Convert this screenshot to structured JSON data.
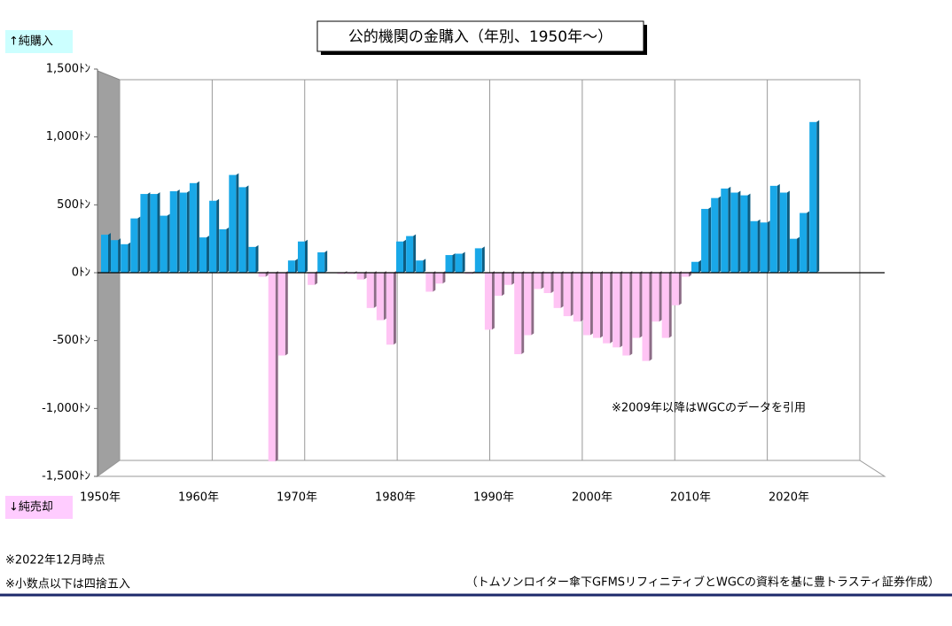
{
  "chart_data": {
    "type": "bar",
    "title": "公的機関の金購入（年別、1950年～）",
    "y_label_top": "↑純購入",
    "y_label_bottom": "↓純売却",
    "annotation": "※2009年以降はWGCのデータを引用",
    "notes": [
      "※2022年12月時点",
      "※小数点以下は四捨五入"
    ],
    "source": "（トムソンロイター傘下GFMSリフィニティブとWGCの資料を基に豊トラスティ証券作成）",
    "x": [
      1950,
      1951,
      1952,
      1953,
      1954,
      1955,
      1956,
      1957,
      1958,
      1959,
      1960,
      1961,
      1962,
      1963,
      1964,
      1965,
      1966,
      1967,
      1968,
      1969,
      1970,
      1971,
      1972,
      1973,
      1974,
      1975,
      1976,
      1977,
      1978,
      1979,
      1980,
      1981,
      1982,
      1983,
      1984,
      1985,
      1986,
      1987,
      1988,
      1989,
      1990,
      1991,
      1992,
      1993,
      1994,
      1995,
      1996,
      1997,
      1998,
      1999,
      2000,
      2001,
      2002,
      2003,
      2004,
      2005,
      2006,
      2007,
      2008,
      2009,
      2010,
      2011,
      2012,
      2013,
      2014,
      2015,
      2016,
      2017,
      2018,
      2019,
      2020,
      2021,
      2022
    ],
    "values": [
      280,
      240,
      210,
      400,
      580,
      580,
      420,
      600,
      590,
      660,
      260,
      530,
      320,
      720,
      630,
      190,
      -30,
      -1390,
      -610,
      90,
      230,
      -90,
      150,
      0,
      -10,
      -10,
      -50,
      -260,
      -350,
      -530,
      230,
      270,
      90,
      -140,
      -80,
      130,
      140,
      -10,
      180,
      -420,
      -170,
      -90,
      -600,
      -460,
      -120,
      -150,
      -260,
      -320,
      -360,
      -460,
      -480,
      -520,
      -550,
      -610,
      -480,
      -650,
      -360,
      -480,
      -240,
      -30,
      80,
      470,
      550,
      620,
      590,
      570,
      380,
      370,
      640,
      590,
      250,
      440,
      1110
    ],
    "color": "#19a8e8",
    "negative_color": "#ffc4f4",
    "xlim": [
      1950,
      2030
    ],
    "xticks": [
      {
        "value": 1950,
        "label": "1950年"
      },
      {
        "value": 1960,
        "label": "1960年"
      },
      {
        "value": 1970,
        "label": "1970年"
      },
      {
        "value": 1980,
        "label": "1980年"
      },
      {
        "value": 1990,
        "label": "1990年"
      },
      {
        "value": 2000,
        "label": "2000年"
      },
      {
        "value": 2010,
        "label": "2010年"
      },
      {
        "value": 2020,
        "label": "2020年"
      }
    ],
    "ylim": [
      -1500,
      1500
    ],
    "yticks": [
      {
        "value": -1500,
        "label": "-1,500ﾄﾝ"
      },
      {
        "value": -1000,
        "label": "-1,000ﾄﾝ"
      },
      {
        "value": -500,
        "label": "-500ﾄﾝ"
      },
      {
        "value": 0,
        "label": "0ﾄﾝ"
      },
      {
        "value": 500,
        "label": "500ﾄﾝ"
      },
      {
        "value": 1000,
        "label": "1,000ﾄﾝ"
      },
      {
        "value": 1500,
        "label": "1,500ﾄﾝ"
      }
    ],
    "grid": true
  }
}
